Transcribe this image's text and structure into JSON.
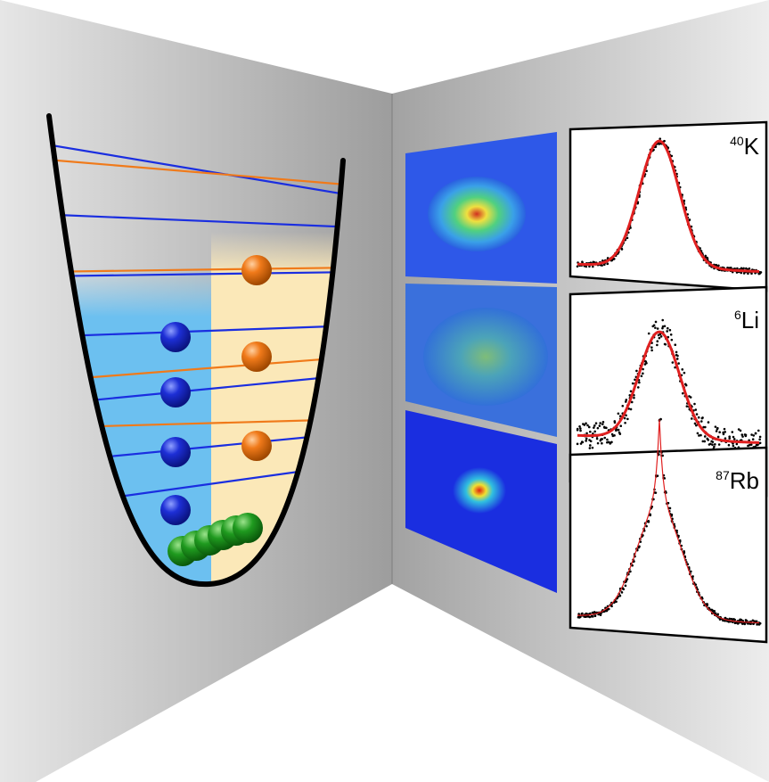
{
  "panels": [
    {
      "mass": "40",
      "element": "K"
    },
    {
      "mass": "6",
      "element": "Li"
    },
    {
      "mass": "87",
      "element": "Rb"
    }
  ]
}
